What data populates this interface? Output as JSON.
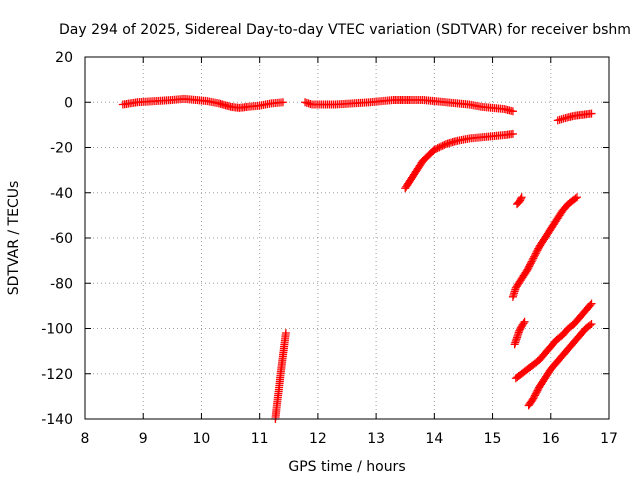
{
  "chart_data": {
    "type": "scatter",
    "title": "Day 294 of 2025, Sidereal Day-to-day VTEC variation (SDTVAR) for receiver bshm",
    "xlabel": "GPS time / hours",
    "ylabel": "SDTVAR / TECUs",
    "xlim": [
      8,
      17
    ],
    "ylim": [
      -140,
      20
    ],
    "xticks": [
      "8",
      "9",
      "10",
      "11",
      "12",
      "13",
      "14",
      "15",
      "16",
      "17"
    ],
    "yticks": [
      "20",
      "0",
      "-20",
      "-40",
      "-60",
      "-80",
      "-100",
      "-120",
      "-140"
    ],
    "grid": true,
    "marker": "plus",
    "color": "#ff0000",
    "segments": [
      {
        "x": [
          8.65,
          8.9,
          9.2,
          9.5,
          9.7,
          9.9,
          10.1,
          10.3,
          10.5,
          10.65,
          10.8,
          11.0,
          11.2,
          11.4
        ],
        "y": [
          -1,
          0,
          0.5,
          1,
          1.5,
          1,
          0.5,
          -0.5,
          -2,
          -2.5,
          -2,
          -1.5,
          -0.5,
          0
        ]
      },
      {
        "x": [
          11.78,
          11.9,
          12.1,
          12.3,
          12.6,
          12.9,
          13.1,
          13.3,
          13.45,
          13.6,
          13.8,
          14.0,
          14.2,
          14.4,
          14.6,
          14.8,
          15.0,
          15.2,
          15.35
        ],
        "y": [
          0,
          -1,
          -1,
          -1,
          -0.5,
          0,
          0.5,
          1,
          1,
          1,
          1,
          0.5,
          0,
          -0.5,
          -1,
          -2,
          -2.5,
          -3,
          -4
        ]
      },
      {
        "x": [
          16.12,
          16.25,
          16.4,
          16.55,
          16.7
        ],
        "y": [
          -8,
          -7,
          -6,
          -5.5,
          -5
        ]
      },
      {
        "x": [
          13.5,
          13.6,
          13.7,
          13.8,
          13.9,
          14.0,
          14.2,
          14.4,
          14.6,
          14.8,
          15.0,
          15.2,
          15.35
        ],
        "y": [
          -38,
          -34,
          -30,
          -26,
          -23.5,
          -21,
          -18.5,
          -17,
          -16,
          -15.5,
          -15,
          -14.5,
          -14
        ]
      },
      {
        "x": [
          15.42,
          15.46,
          15.5
        ],
        "y": [
          -45,
          -44,
          -42
        ]
      },
      {
        "x": [
          15.35,
          15.4,
          15.5,
          15.6,
          15.7,
          15.8,
          15.9,
          16.0,
          16.1,
          16.2,
          16.3,
          16.45
        ],
        "y": [
          -86,
          -82,
          -78,
          -74,
          -69,
          -64,
          -60,
          -56,
          -52,
          -48,
          -45,
          -42
        ]
      },
      {
        "x": [
          15.38,
          15.42,
          15.46,
          15.5,
          15.55
        ],
        "y": [
          -107,
          -104,
          -101,
          -99,
          -97
        ]
      },
      {
        "x": [
          15.4,
          15.5,
          15.6,
          15.7,
          15.8,
          15.9,
          16.0,
          16.1,
          16.2,
          16.3,
          16.4,
          16.5,
          16.6,
          16.7
        ],
        "y": [
          -122,
          -120,
          -118,
          -116,
          -114,
          -111,
          -108,
          -105,
          -103,
          -100,
          -98,
          -95,
          -92,
          -89
        ]
      },
      {
        "x": [
          15.62,
          15.7,
          15.8,
          15.9,
          16.0,
          16.1,
          16.2,
          16.3,
          16.4,
          16.5,
          16.6,
          16.7
        ],
        "y": [
          -134,
          -131,
          -126,
          -122,
          -118,
          -115,
          -112,
          -109,
          -106,
          -103,
          -100,
          -98
        ]
      },
      {
        "x": [
          11.27,
          11.3,
          11.33,
          11.36,
          11.39,
          11.42,
          11.45
        ],
        "y": [
          -140,
          -133,
          -127,
          -120,
          -114,
          -108,
          -102
        ]
      }
    ]
  }
}
